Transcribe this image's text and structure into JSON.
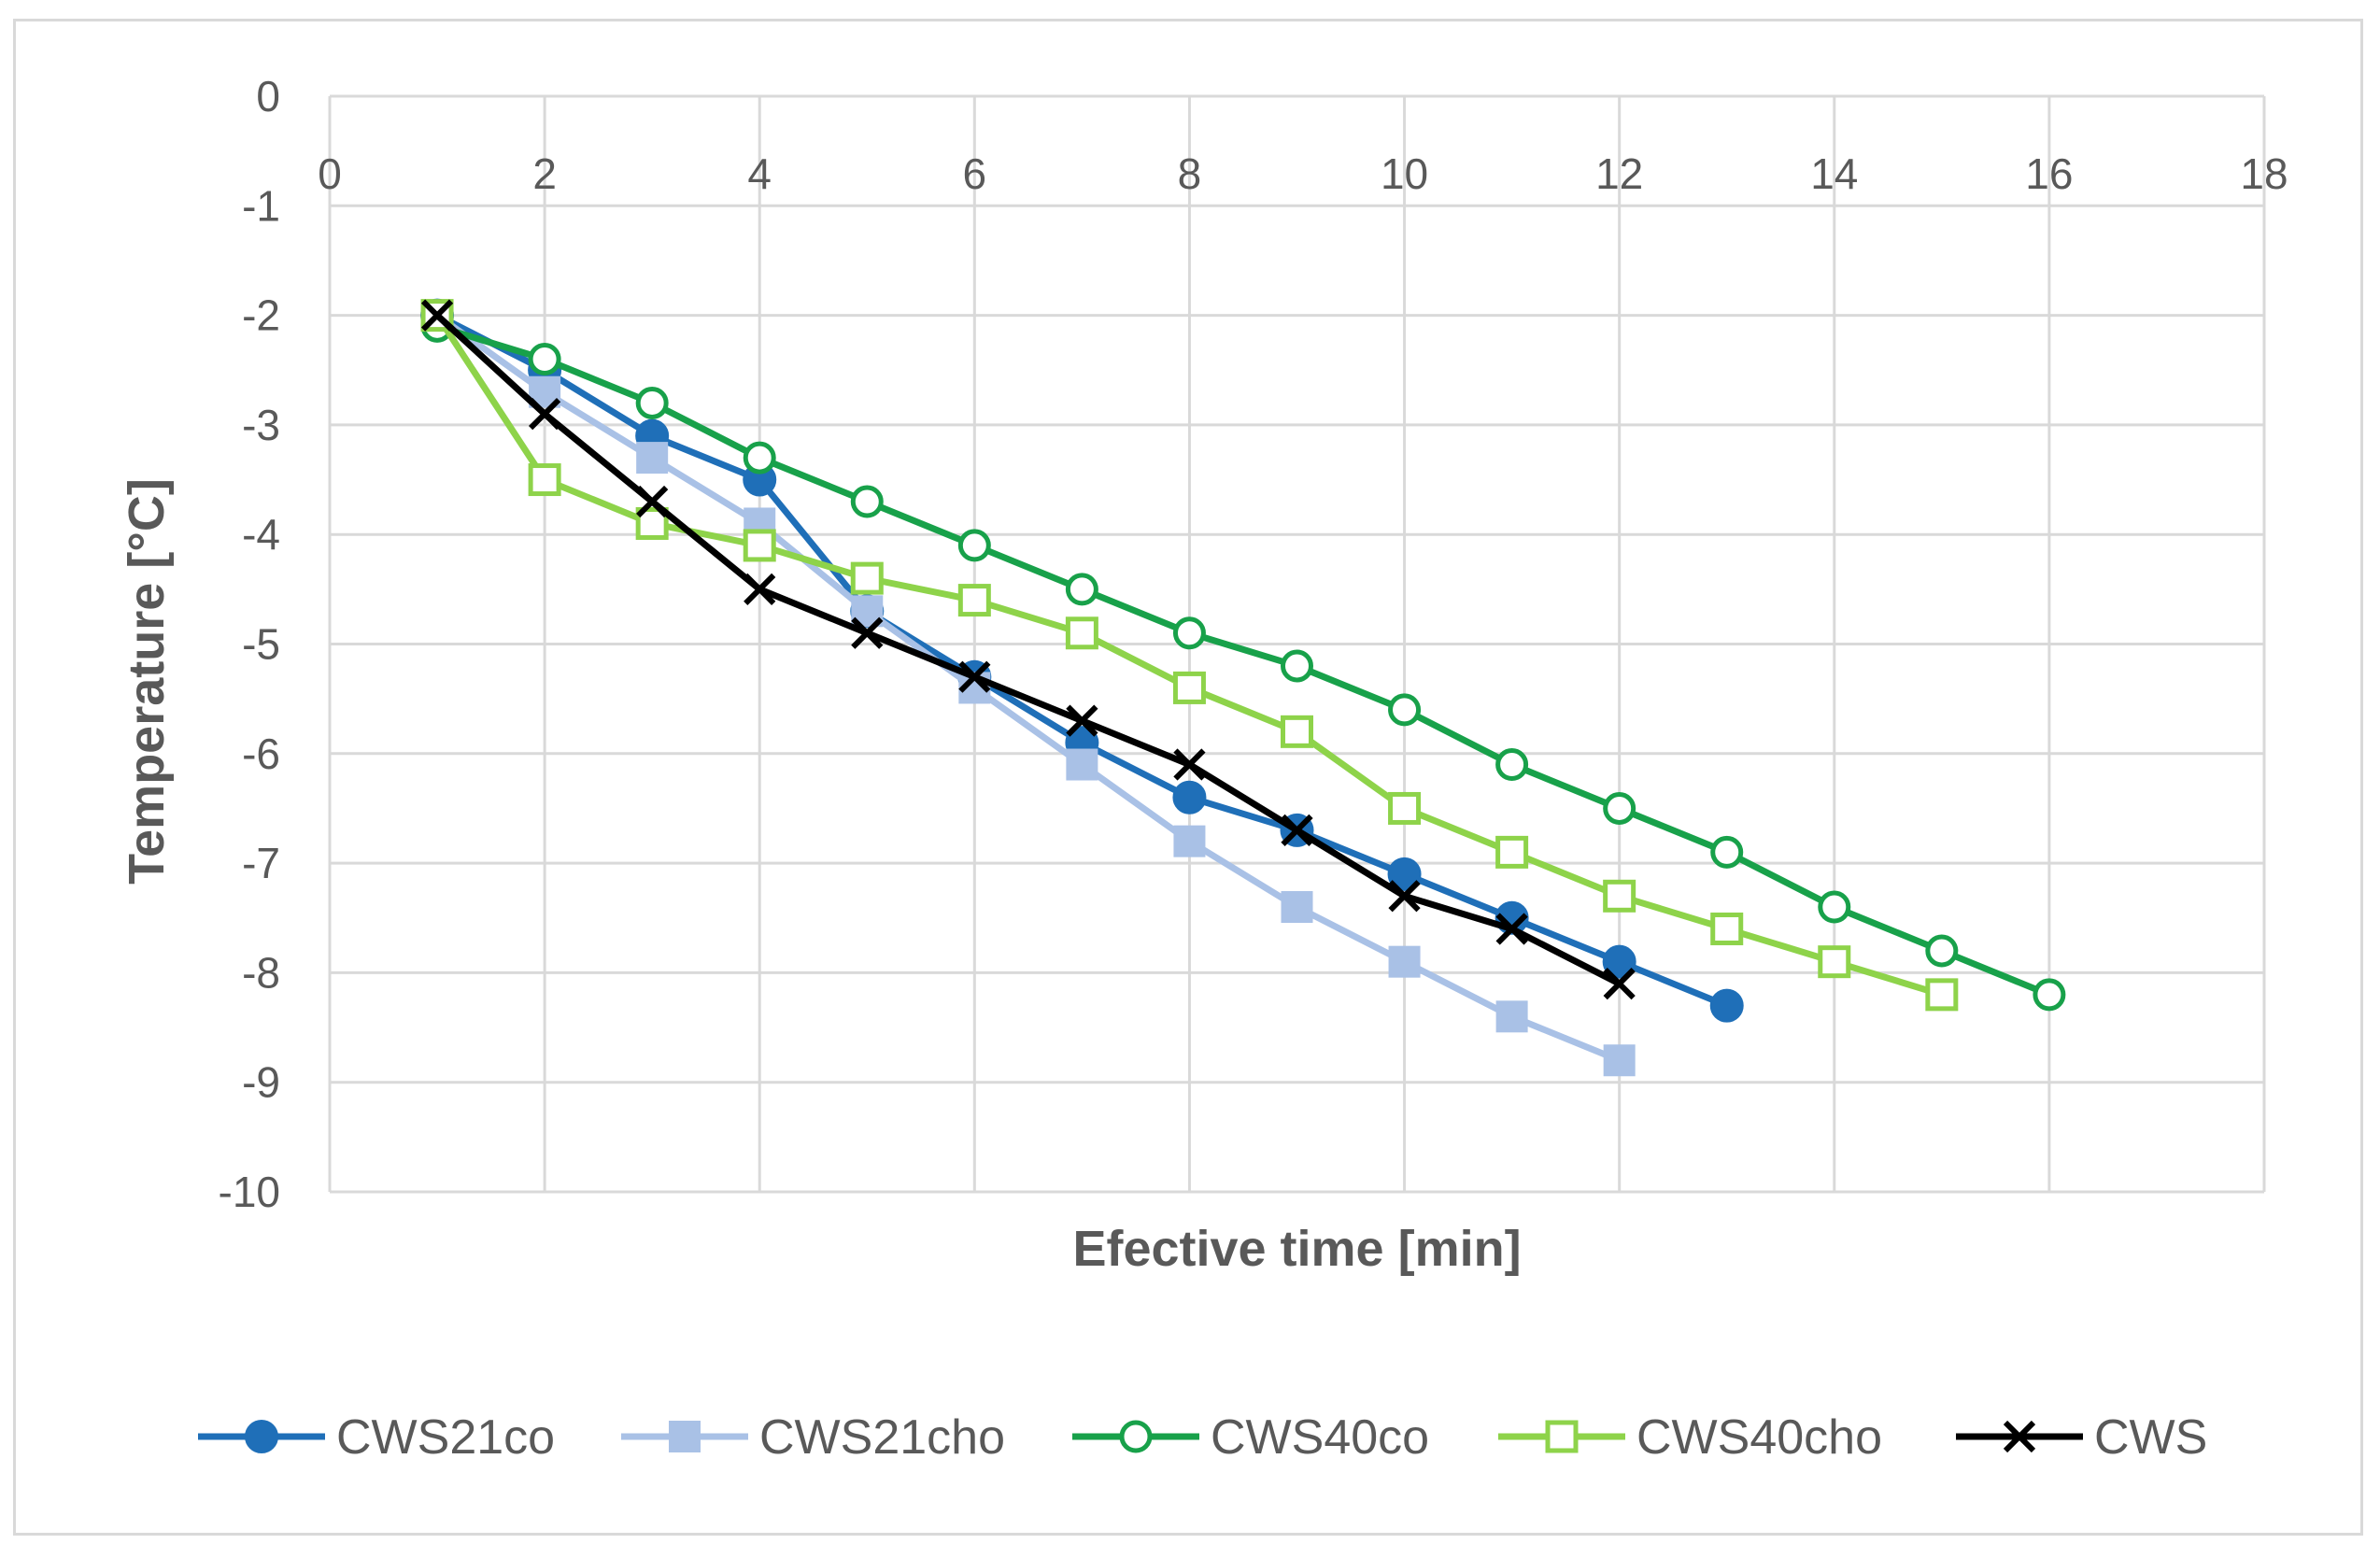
{
  "chart_data": {
    "type": "line",
    "title": "",
    "xlabel": "Efective time [min]",
    "ylabel": "Temperature [°C]",
    "xlim": [
      0,
      18
    ],
    "ylim": [
      -10,
      0
    ],
    "xticks": [
      0,
      2,
      4,
      6,
      8,
      10,
      12,
      14,
      16,
      18
    ],
    "yticks": [
      0,
      -1,
      -2,
      -3,
      -4,
      -5,
      -6,
      -7,
      -8,
      -9,
      -10
    ],
    "x_axis_position": "top",
    "grid": true,
    "legend_position": "bottom",
    "series": [
      {
        "name": "CWS21co",
        "color": "#1f6fb8",
        "marker": "filled-circle",
        "x": [
          1,
          2,
          3,
          4,
          5,
          6,
          7,
          8,
          9,
          10,
          11,
          12,
          13
        ],
        "y": [
          -2.0,
          -2.5,
          -3.1,
          -3.5,
          -4.7,
          -5.3,
          -5.9,
          -6.4,
          -6.7,
          -7.1,
          -7.5,
          -7.9,
          -8.3
        ]
      },
      {
        "name": "CWS21cho",
        "color": "#a9c1e6",
        "marker": "filled-square",
        "x": [
          1,
          2,
          3,
          4,
          5,
          6,
          7,
          8,
          9,
          10,
          11,
          12
        ],
        "y": [
          -2.0,
          -2.7,
          -3.3,
          -3.9,
          -4.7,
          -5.4,
          -6.1,
          -6.8,
          -7.4,
          -7.9,
          -8.4,
          -8.8
        ]
      },
      {
        "name": "CWS40co",
        "color": "#18a14a",
        "marker": "open-circle",
        "x": [
          1,
          2,
          3,
          4,
          5,
          6,
          7,
          8,
          9,
          10,
          11,
          12,
          13,
          14,
          15,
          16
        ],
        "y": [
          -2.1,
          -2.4,
          -2.8,
          -3.3,
          -3.7,
          -4.1,
          -4.5,
          -4.9,
          -5.2,
          -5.6,
          -6.1,
          -6.5,
          -6.9,
          -7.4,
          -7.8,
          -8.2
        ]
      },
      {
        "name": "CWS40cho",
        "color": "#8ed34a",
        "marker": "open-square",
        "x": [
          1,
          2,
          3,
          4,
          5,
          6,
          7,
          8,
          9,
          10,
          11,
          12,
          13,
          14,
          15
        ],
        "y": [
          -2.0,
          -3.5,
          -3.9,
          -4.1,
          -4.4,
          -4.6,
          -4.9,
          -5.4,
          -5.8,
          -6.5,
          -6.9,
          -7.3,
          -7.6,
          -7.9,
          -8.2
        ]
      },
      {
        "name": "CWS",
        "color": "#000000",
        "marker": "x",
        "x": [
          1,
          2,
          3,
          4,
          5,
          6,
          7,
          8,
          9,
          10,
          11,
          12
        ],
        "y": [
          -2.0,
          -2.9,
          -3.7,
          -4.5,
          -4.9,
          -5.3,
          -5.7,
          -6.1,
          -6.7,
          -7.3,
          -7.6,
          -8.1
        ]
      }
    ]
  },
  "colors": {
    "grid": "#d9d9d9",
    "text": "#595959",
    "frame": "#d9d9d9"
  }
}
